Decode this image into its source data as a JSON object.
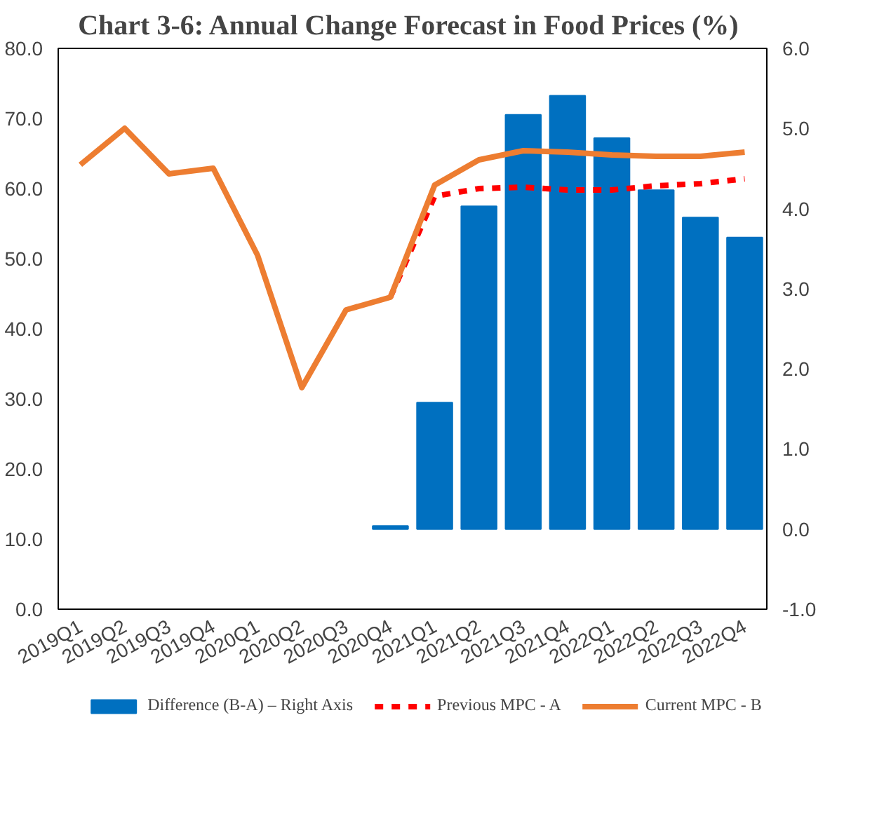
{
  "chart_data": {
    "type": "line",
    "title": "Chart 3-6:  Annual Change Forecast in Food Prices (%)",
    "categories": [
      "2019Q1",
      "2019Q2",
      "2019Q3",
      "2019Q4",
      "2020Q1",
      "2020Q2",
      "2020Q3",
      "2020Q4",
      "2021Q1",
      "2021Q2",
      "2021Q3",
      "2021Q4",
      "2022Q1",
      "2022Q2",
      "2022Q3",
      "2022Q4"
    ],
    "series": [
      {
        "name": "Difference (B-A) – Right Axis",
        "type": "bar",
        "axis": "y2",
        "color": "#0070c0",
        "values": [
          null,
          null,
          null,
          null,
          null,
          null,
          null,
          0.04,
          1.58,
          4.03,
          5.17,
          5.41,
          4.88,
          4.23,
          3.89,
          3.64
        ]
      },
      {
        "name": "Previous MPC - A",
        "line_style": "dashed",
        "color": "#ff0000",
        "values": [
          null,
          null,
          null,
          null,
          null,
          null,
          null,
          44.5,
          58.9,
          60.0,
          60.2,
          59.8,
          59.8,
          60.4,
          60.7,
          61.4
        ]
      },
      {
        "name": "Current MPC - B",
        "line_style": "solid",
        "color": "#ed7d31",
        "values": [
          63.4,
          68.6,
          62.1,
          62.9,
          50.5,
          31.6,
          42.7,
          44.5,
          60.5,
          64.1,
          65.4,
          65.2,
          64.8,
          64.6,
          64.6,
          65.2
        ]
      }
    ],
    "ylim": [
      0,
      80
    ],
    "yticks": [
      {
        "value": 0,
        "label": "0.0"
      },
      {
        "value": 10,
        "label": "10.0"
      },
      {
        "value": 20,
        "label": "20.0"
      },
      {
        "value": 30,
        "label": "30.0"
      },
      {
        "value": 40,
        "label": "40.0"
      },
      {
        "value": 50,
        "label": "50.0"
      },
      {
        "value": 60,
        "label": "60.0"
      },
      {
        "value": 70,
        "label": "70.0"
      },
      {
        "value": 80,
        "label": "80.0"
      }
    ],
    "y2lim": [
      -1,
      6
    ],
    "y2ticks": [
      {
        "value": -1,
        "label": "-1.0"
      },
      {
        "value": 0,
        "label": "0.0"
      },
      {
        "value": 1,
        "label": "1.0"
      },
      {
        "value": 2,
        "label": "2.0"
      },
      {
        "value": 3,
        "label": "3.0"
      },
      {
        "value": 4,
        "label": "4.0"
      },
      {
        "value": 5,
        "label": "5.0"
      },
      {
        "value": 6,
        "label": "6.0"
      }
    ],
    "grid": false,
    "legend": "bottom"
  }
}
